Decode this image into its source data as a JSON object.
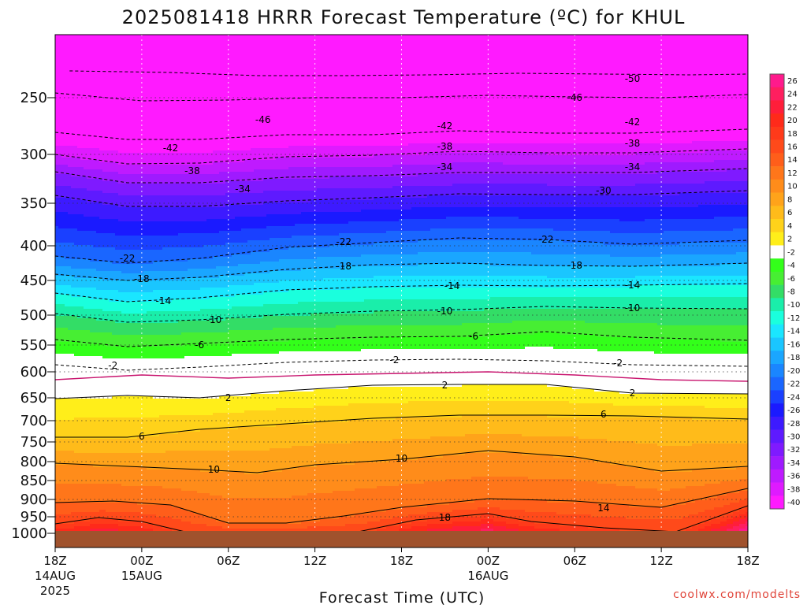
{
  "chart_data": {
    "type": "heatmap",
    "title": "2025081418 HRRR Forecast Temperature (ºC) for KHUL",
    "xlabel": "Forecast Time (UTC)",
    "ylabel": "",
    "x_ticks": [
      {
        "label": "18Z",
        "sub1": "14AUG",
        "sub2": "2025",
        "hour": 0
      },
      {
        "label": "00Z",
        "sub1": "15AUG",
        "sub2": "",
        "hour": 6
      },
      {
        "label": "06Z",
        "sub1": "",
        "sub2": "",
        "hour": 12
      },
      {
        "label": "12Z",
        "sub1": "",
        "sub2": "",
        "hour": 18
      },
      {
        "label": "18Z",
        "sub1": "",
        "sub2": "",
        "hour": 24
      },
      {
        "label": "00Z",
        "sub1": "16AUG",
        "sub2": "",
        "hour": 30
      },
      {
        "label": "06Z",
        "sub1": "",
        "sub2": "",
        "hour": 36
      },
      {
        "label": "12Z",
        "sub1": "",
        "sub2": "",
        "hour": 42
      },
      {
        "label": "18Z",
        "sub1": "",
        "sub2": "",
        "hour": 48
      }
    ],
    "x_range_hours": [
      0,
      48
    ],
    "y_ticks": [
      250,
      300,
      350,
      400,
      450,
      500,
      550,
      600,
      650,
      700,
      750,
      800,
      850,
      900,
      950,
      1000
    ],
    "y_range_hPa": [
      200,
      1025
    ],
    "ground_level_hPa": 1000,
    "colorbar": {
      "levels": [
        26,
        24,
        22,
        20,
        18,
        16,
        14,
        12,
        10,
        8,
        6,
        4,
        2,
        -2,
        -4,
        -6,
        -8,
        -10,
        -12,
        -14,
        -16,
        -18,
        -20,
        -22,
        -24,
        -26,
        -28,
        -30,
        -32,
        -34,
        -36,
        -38,
        -40
      ],
      "colors": [
        "#ff1a8c",
        "#ff1f5f",
        "#ff1e3a",
        "#ff2a1a",
        "#ff3a1a",
        "#ff4a1a",
        "#ff5e1a",
        "#ff761a",
        "#ff8c1a",
        "#ffa31a",
        "#ffbb1a",
        "#ffd21a",
        "#ffee1a",
        "#ffffff",
        "#33ff1a",
        "#47ee33",
        "#33dd66",
        "#1aeeaa",
        "#1affdd",
        "#1ae6ff",
        "#1ac6ff",
        "#1aa6ff",
        "#1a86ff",
        "#1a66ff",
        "#1a40ff",
        "#1a1aff",
        "#3d1aff",
        "#5e1aff",
        "#7f1aff",
        "#9f1aff",
        "#bf1aff",
        "#df1aff",
        "#ff1aff"
      ]
    },
    "contours": [
      {
        "label": "-50",
        "points": [
          [
            1,
            90
          ],
          [
            8,
            92
          ],
          [
            14,
            96
          ],
          [
            20,
            96
          ],
          [
            26,
            95
          ],
          [
            32,
            93
          ],
          [
            38,
            94
          ],
          [
            44,
            95
          ],
          [
            48,
            94
          ]
        ],
        "labels_at": [
          [
            40,
            100
          ]
        ],
        "dashed": true
      },
      {
        "label": "-46",
        "points": [
          [
            0,
            118
          ],
          [
            6,
            128
          ],
          [
            12,
            127
          ],
          [
            18,
            124
          ],
          [
            24,
            124
          ],
          [
            30,
            121
          ],
          [
            36,
            123
          ],
          [
            42,
            124
          ],
          [
            48,
            120
          ]
        ],
        "labels_at": [
          [
            14.4,
            152
          ],
          [
            36,
            124
          ]
        ],
        "dashed": true
      },
      {
        "label": "-42",
        "points": [
          [
            0,
            168
          ],
          [
            5,
            177
          ],
          [
            10,
            177
          ],
          [
            16,
            171
          ],
          [
            22,
            171
          ],
          [
            28,
            166
          ],
          [
            34,
            169
          ],
          [
            40,
            169
          ],
          [
            48,
            164
          ]
        ],
        "labels_at": [
          [
            8,
            188
          ],
          [
            27,
            160
          ],
          [
            40,
            155
          ]
        ],
        "dashed": true
      },
      {
        "label": "-38",
        "points": [
          [
            0,
            196
          ],
          [
            5,
            208
          ],
          [
            10,
            207
          ],
          [
            16,
            199
          ],
          [
            22,
            197
          ],
          [
            28,
            192
          ],
          [
            34,
            194
          ],
          [
            40,
            194
          ],
          [
            48,
            189
          ]
        ],
        "labels_at": [
          [
            9.5,
            217
          ],
          [
            27,
            186
          ],
          [
            40,
            182
          ]
        ],
        "dashed": true
      },
      {
        "label": "-34",
        "points": [
          [
            0,
            218
          ],
          [
            5,
            232
          ],
          [
            10,
            232
          ],
          [
            16,
            225
          ],
          [
            22,
            223
          ],
          [
            28,
            219
          ],
          [
            34,
            219
          ],
          [
            40,
            219
          ],
          [
            48,
            214
          ]
        ],
        "labels_at": [
          [
            13,
            240
          ],
          [
            27,
            212
          ],
          [
            40,
            212
          ]
        ],
        "dashed": true
      },
      {
        "label": "-30",
        "points": [
          [
            0,
            248
          ],
          [
            5,
            262
          ],
          [
            10,
            262
          ],
          [
            16,
            255
          ],
          [
            22,
            251
          ],
          [
            28,
            246
          ],
          [
            34,
            247
          ],
          [
            40,
            247
          ],
          [
            48,
            242
          ]
        ],
        "labels_at": [
          [
            38,
            242
          ]
        ],
        "dashed": true
      },
      {
        "label": "-22",
        "points": [
          [
            0,
            325
          ],
          [
            5,
            334
          ],
          [
            10,
            328
          ],
          [
            16,
            314
          ],
          [
            22,
            308
          ],
          [
            28,
            302
          ],
          [
            34,
            304
          ],
          [
            40,
            310
          ],
          [
            48,
            305
          ]
        ],
        "labels_at": [
          [
            5,
            328
          ],
          [
            20,
            307
          ],
          [
            34,
            304
          ]
        ],
        "dashed": true
      },
      {
        "label": "-18",
        "points": [
          [
            0,
            348
          ],
          [
            5,
            356
          ],
          [
            10,
            352
          ],
          [
            16,
            342
          ],
          [
            22,
            336
          ],
          [
            28,
            334
          ],
          [
            34,
            337
          ],
          [
            40,
            338
          ],
          [
            48,
            334
          ]
        ],
        "labels_at": [
          [
            6,
            354
          ],
          [
            20,
            338
          ],
          [
            36,
            337
          ]
        ],
        "dashed": true
      },
      {
        "label": "-14",
        "points": [
          [
            0,
            372
          ],
          [
            5,
            383
          ],
          [
            10,
            378
          ],
          [
            16,
            368
          ],
          [
            22,
            364
          ],
          [
            28,
            362
          ],
          [
            34,
            363
          ],
          [
            40,
            362
          ],
          [
            48,
            360
          ]
        ],
        "labels_at": [
          [
            7.5,
            382
          ],
          [
            27.5,
            363
          ],
          [
            40,
            362
          ]
        ],
        "dashed": true
      },
      {
        "label": "-10",
        "points": [
          [
            0,
            398
          ],
          [
            5,
            409
          ],
          [
            10,
            406
          ],
          [
            16,
            399
          ],
          [
            22,
            395
          ],
          [
            28,
            393
          ],
          [
            34,
            389
          ],
          [
            40,
            391
          ],
          [
            48,
            392
          ]
        ],
        "labels_at": [
          [
            11,
            406
          ],
          [
            27,
            395
          ],
          [
            40,
            391
          ]
        ],
        "dashed": true
      },
      {
        "label": "-6",
        "points": [
          [
            0,
            431
          ],
          [
            5,
            440
          ],
          [
            10,
            436
          ],
          [
            16,
            431
          ],
          [
            22,
            428
          ],
          [
            28,
            427
          ],
          [
            34,
            421
          ],
          [
            40,
            428
          ],
          [
            48,
            432
          ]
        ],
        "labels_at": [
          [
            10,
            438
          ],
          [
            29,
            427
          ]
        ],
        "dashed": true
      },
      {
        "label": "-2",
        "points": [
          [
            0,
            463
          ],
          [
            5,
            470
          ],
          [
            10,
            466
          ],
          [
            16,
            460
          ],
          [
            22,
            457
          ],
          [
            28,
            456
          ],
          [
            34,
            458
          ],
          [
            40,
            463
          ],
          [
            48,
            465
          ]
        ],
        "labels_at": [
          [
            4,
            464
          ],
          [
            23.5,
            457
          ],
          [
            39,
            461
          ]
        ],
        "dashed": true
      },
      {
        "label": "",
        "points": [
          [
            0,
            482
          ],
          [
            6,
            476
          ],
          [
            12,
            480
          ],
          [
            18,
            476
          ],
          [
            24,
            474
          ],
          [
            30,
            472
          ],
          [
            36,
            476
          ],
          [
            42,
            482
          ],
          [
            48,
            484
          ]
        ],
        "labels_at": [],
        "dashed": false,
        "color": "#c8146e"
      },
      {
        "label": "2",
        "points": [
          [
            0,
            506
          ],
          [
            5,
            502
          ],
          [
            10,
            505
          ],
          [
            16,
            496
          ],
          [
            22,
            489
          ],
          [
            28,
            488
          ],
          [
            34,
            488
          ],
          [
            40,
            499
          ],
          [
            48,
            500
          ]
        ],
        "labels_at": [
          [
            12,
            505
          ],
          [
            27,
            489
          ],
          [
            40,
            499
          ]
        ],
        "dashed": false
      },
      {
        "label": "6",
        "points": [
          [
            0,
            555
          ],
          [
            5,
            555
          ],
          [
            10,
            545
          ],
          [
            16,
            538
          ],
          [
            22,
            531
          ],
          [
            28,
            527
          ],
          [
            34,
            527
          ],
          [
            40,
            528
          ],
          [
            48,
            532
          ]
        ],
        "labels_at": [
          [
            6,
            554
          ],
          [
            38,
            526
          ]
        ],
        "dashed": false
      },
      {
        "label": "10",
        "points": [
          [
            0,
            588
          ],
          [
            5,
            592
          ],
          [
            10,
            596
          ],
          [
            14,
            600
          ],
          [
            18,
            590
          ],
          [
            24,
            583
          ],
          [
            30,
            572
          ],
          [
            36,
            580
          ],
          [
            42,
            598
          ],
          [
            48,
            592
          ]
        ],
        "labels_at": [
          [
            11,
            596
          ],
          [
            24,
            582
          ]
        ],
        "dashed": false
      },
      {
        "label": "14",
        "points": [
          [
            0,
            638
          ],
          [
            4,
            636
          ],
          [
            8,
            641
          ],
          [
            12,
            664
          ],
          [
            16,
            664
          ],
          [
            20,
            655
          ],
          [
            24,
            644
          ],
          [
            30,
            633
          ],
          [
            36,
            636
          ],
          [
            42,
            644
          ],
          [
            48,
            620
          ]
        ],
        "labels_at": [
          [
            38,
            645
          ]
        ],
        "dashed": false
      },
      {
        "label": "18",
        "points": [
          [
            0,
            665
          ],
          [
            3,
            657
          ],
          [
            6,
            662
          ],
          [
            9,
            675
          ],
          [
            21,
            675
          ],
          [
            25,
            660
          ],
          [
            30,
            652
          ],
          [
            33,
            662
          ],
          [
            38,
            670
          ],
          [
            43,
            675
          ],
          [
            48,
            642
          ]
        ],
        "labels_at": [
          [
            27,
            657
          ]
        ],
        "dashed": false
      }
    ],
    "grid": true,
    "legend_placement": "right"
  },
  "footer": {
    "xlabel": "Forecast Time (UTC)",
    "credit": "coolwx.com/modelts"
  },
  "colors": {
    "ground": "#a0522d",
    "background": "#ffffff"
  }
}
